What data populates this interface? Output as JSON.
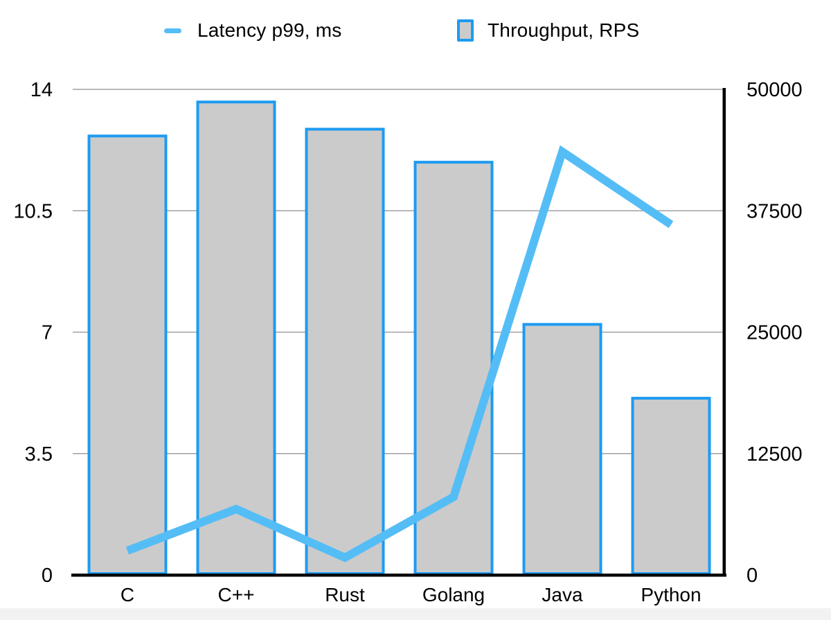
{
  "legend": {
    "latency_label": "Latency p99, ms",
    "throughput_label": "Throughput, RPS"
  },
  "colors": {
    "line": "#55BDF6",
    "bar_fill": "#CBCBCB",
    "bar_border": "#1D9BF1",
    "grid": "#A0A0A0",
    "axis": "#000000",
    "text": "#000000",
    "background": "#FFFFFF",
    "footer_strip": "#F2F2F2"
  },
  "chart_data": {
    "type": "combo-bar-line",
    "categories": [
      "C",
      "C++",
      "Rust",
      "Golang",
      "Java",
      "Python"
    ],
    "series": [
      {
        "name": "Latency p99, ms",
        "type": "line",
        "axis": "left",
        "color": "#55BDF6",
        "values": [
          0.7,
          1.9,
          0.5,
          2.25,
          12.2,
          10.1
        ]
      },
      {
        "name": "Throughput, RPS",
        "type": "bar",
        "axis": "right",
        "fill": "#CBCBCB",
        "border": "#1D9BF1",
        "values": [
          45200,
          48700,
          45900,
          42500,
          25800,
          18200
        ]
      }
    ],
    "left_axis": {
      "range": [
        0,
        14
      ],
      "ticks": [
        "0",
        "3.5",
        "7",
        "10.5",
        "14"
      ]
    },
    "right_axis": {
      "range": [
        0,
        50000
      ],
      "ticks": [
        "0",
        "12500",
        "25000",
        "37500",
        "50000"
      ]
    },
    "grid": true,
    "legend_position": "top"
  }
}
